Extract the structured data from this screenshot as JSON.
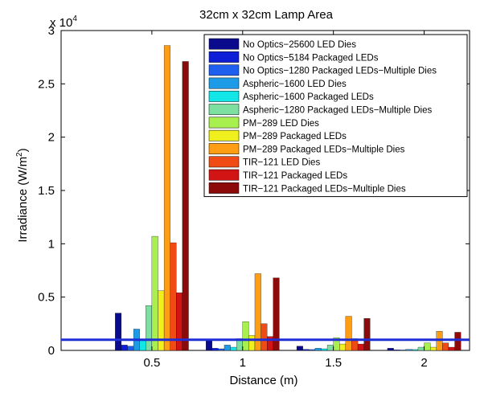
{
  "chart_data": {
    "type": "bar",
    "title": "32cm x 32cm Lamp Area",
    "xlabel": "Distance (m)",
    "ylabel_main": "Irradiance (W/m",
    "ylabel_sup": "2",
    "ylabel_close": ")",
    "y_multiplier": "x 10",
    "y_multiplier_exp": "4",
    "xlim": [
      0,
      2.25
    ],
    "ylim": [
      0,
      30000
    ],
    "x_ticks": [
      0.5,
      1,
      1.5,
      2
    ],
    "x_tick_labels": [
      "0.5",
      "1",
      "1.5",
      "2"
    ],
    "y_ticks": [
      0,
      5000,
      10000,
      15000,
      20000,
      25000,
      30000
    ],
    "y_tick_labels": [
      "0",
      "0.5",
      "1",
      "1.5",
      "2",
      "2.5",
      "3"
    ],
    "categories": [
      0.5,
      1,
      1.5,
      2
    ],
    "legend_position": "top-right",
    "reference_line": {
      "y": 1000,
      "color": "#1f2fd6"
    },
    "series": [
      {
        "name": "No Optics−25600 LED Dies",
        "color": "#0a0a8c",
        "values": [
          3500,
          1000,
          400,
          200
        ]
      },
      {
        "name": "No Optics−5184 Packaged LEDs",
        "color": "#0f1fd8",
        "values": [
          500,
          200,
          100,
          50
        ]
      },
      {
        "name": "No Optics−1280 Packaged LEDs−Multiple Dies",
        "color": "#1f5ff0",
        "values": [
          400,
          150,
          80,
          40
        ]
      },
      {
        "name": "Aspheric−1600 LED Dies",
        "color": "#1e9be6",
        "values": [
          2000,
          500,
          200,
          100
        ]
      },
      {
        "name": "Aspheric−1600 Packaged LEDs",
        "color": "#12e6e6",
        "values": [
          1000,
          300,
          150,
          80
        ]
      },
      {
        "name": "Aspheric−1280 Packaged LEDs−Multiple Dies",
        "color": "#7de0a0",
        "values": [
          4200,
          1100,
          500,
          300
        ]
      },
      {
        "name": "PM−289 LED Dies",
        "color": "#a8f050",
        "values": [
          10700,
          2700,
          1200,
          700
        ]
      },
      {
        "name": "PM−289 Packaged LEDs",
        "color": "#f0f01e",
        "values": [
          5600,
          1400,
          600,
          300
        ]
      },
      {
        "name": "PM−289 Packaged LEDs−Multiple Dies",
        "color": "#ff9e14",
        "values": [
          28600,
          7200,
          3200,
          1800
        ]
      },
      {
        "name": "TIR−121 LED Dies",
        "color": "#f04b14",
        "values": [
          10100,
          2500,
          1100,
          700
        ]
      },
      {
        "name": "TIR−121 Packaged LEDs",
        "color": "#d21414",
        "values": [
          5400,
          1300,
          600,
          300
        ]
      },
      {
        "name": "TIR−121 Packaged LEDs−Multiple Dies",
        "color": "#8c0a0a",
        "values": [
          27100,
          6800,
          3000,
          1700
        ]
      }
    ]
  }
}
